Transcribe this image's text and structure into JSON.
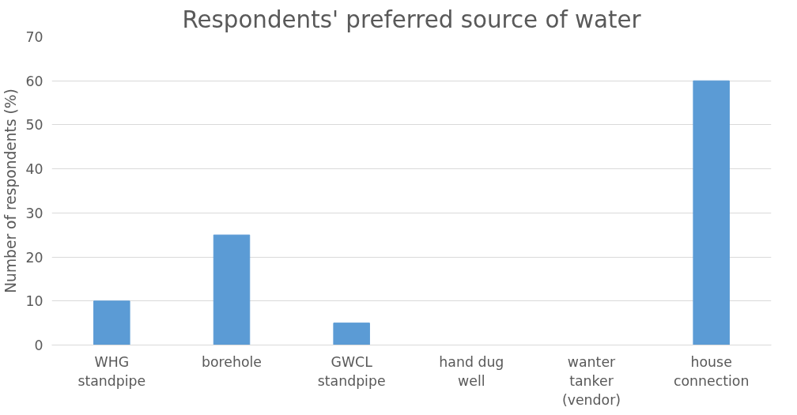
{
  "chart_data": {
    "type": "bar",
    "title": "Respondents' preferred source of water",
    "ylabel": "Number of respondents (%)",
    "categories": [
      "WHG\nstandpipe",
      "borehole",
      "GWCL\nstandpipe",
      "hand dug\nwell",
      "wanter\ntanker\n(vendor)",
      "house\nconnection"
    ],
    "values": [
      10,
      25,
      5,
      0,
      0,
      60
    ],
    "color": "#5b9bd5",
    "ylim": [
      0,
      70
    ],
    "yticks": [
      0,
      10,
      20,
      30,
      40,
      50,
      60,
      70
    ],
    "grid": "y"
  }
}
